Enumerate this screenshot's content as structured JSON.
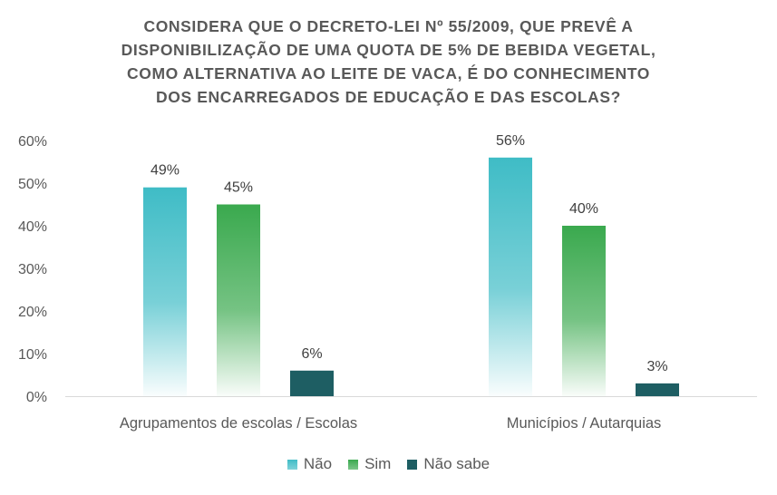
{
  "chart_data": {
    "type": "bar",
    "title_lines": [
      "CONSIDERA QUE O DECRETO-LEI Nº 55/2009, QUE PREVÊ A",
      "DISPONIBILIZAÇÃO DE UMA QUOTA DE 5% DE BEBIDA VEGETAL,",
      "COMO ALTERNATIVA AO LEITE DE VACA, É DO CONHECIMENTO",
      "DOS ENCARREGADOS DE EDUCAÇÃO E DAS ESCOLAS?"
    ],
    "categories": [
      "Agrupamentos de escolas / Escolas",
      "Municípios / Autarquias"
    ],
    "series": [
      {
        "name": "Não",
        "values": [
          49,
          56
        ],
        "labels": [
          "49%",
          "56%"
        ],
        "color": "#3FBCC6",
        "gradient": true
      },
      {
        "name": "Sim",
        "values": [
          45,
          40
        ],
        "labels": [
          "45%",
          "40%"
        ],
        "color": "#3AA94E",
        "gradient": true
      },
      {
        "name": "Não sabe",
        "values": [
          6,
          3
        ],
        "labels": [
          "6%",
          "3%"
        ],
        "color": "#1E5E63",
        "gradient": false
      }
    ],
    "ylim": [
      0,
      60
    ],
    "yticks": [
      0,
      10,
      20,
      30,
      40,
      50,
      60
    ],
    "ytick_labels": [
      "0%",
      "10%",
      "20%",
      "30%",
      "40%",
      "50%",
      "60%"
    ],
    "grid": false,
    "legend_position": "bottom"
  }
}
